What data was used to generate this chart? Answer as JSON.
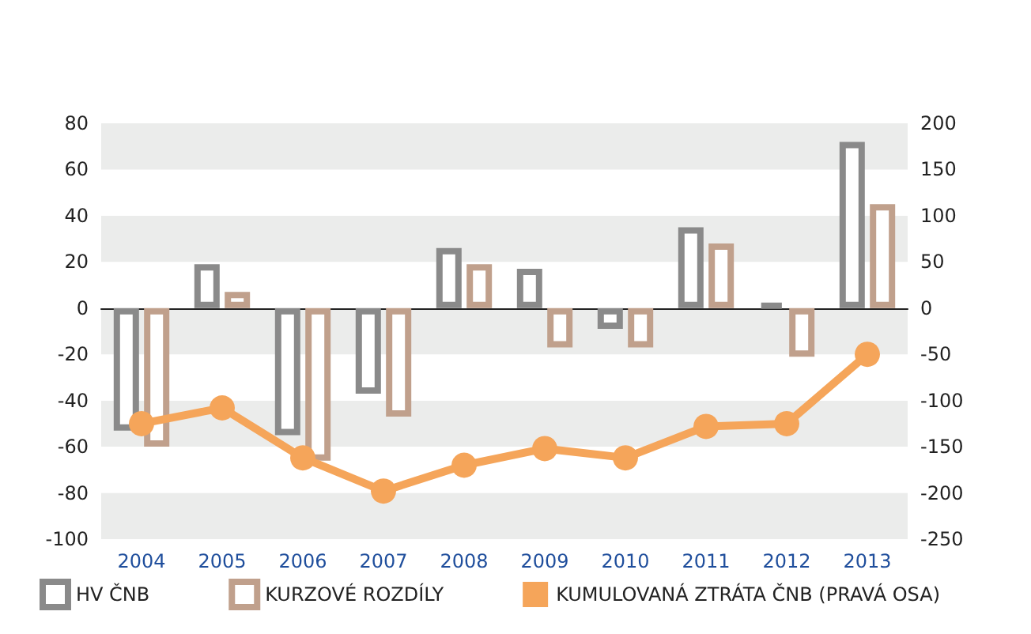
{
  "chart_data": {
    "type": "bar",
    "categories": [
      "2004",
      "2005",
      "2006",
      "2007",
      "2008",
      "2009",
      "2010",
      "2011",
      "2012",
      "2013"
    ],
    "series": [
      {
        "name": "HV ČNB",
        "color": "#8a8a8a",
        "values": [
          -53,
          19,
          -55,
          -37,
          26,
          17,
          -9,
          35,
          2,
          72
        ]
      },
      {
        "name": "KURZOVÉ ROZDÍLY",
        "color": "#c0a08c",
        "values": [
          -60,
          7,
          -66,
          -47,
          19,
          -17,
          -17,
          28,
          -21,
          45
        ]
      },
      {
        "name": "KUMULOVANÁ ZTRÁTA ČNB (PRAVÁ OSA)",
        "type": "line",
        "axis": "y2",
        "color": "#f5a55a",
        "values": [
          -125,
          -108,
          -162,
          -198,
          -170,
          -152,
          -162,
          -128,
          -125,
          -50
        ]
      }
    ],
    "ylim": [
      -100,
      80
    ],
    "yticks": [
      -100,
      -80,
      -60,
      -40,
      -20,
      0,
      20,
      40,
      60,
      80
    ],
    "y2lim": [
      -250,
      200
    ],
    "y2ticks": [
      -250,
      -200,
      -150,
      -100,
      -50,
      0,
      50,
      100,
      150,
      200
    ],
    "grid": true,
    "legend": "bottom",
    "marker": "circle",
    "line_style": "solid"
  }
}
